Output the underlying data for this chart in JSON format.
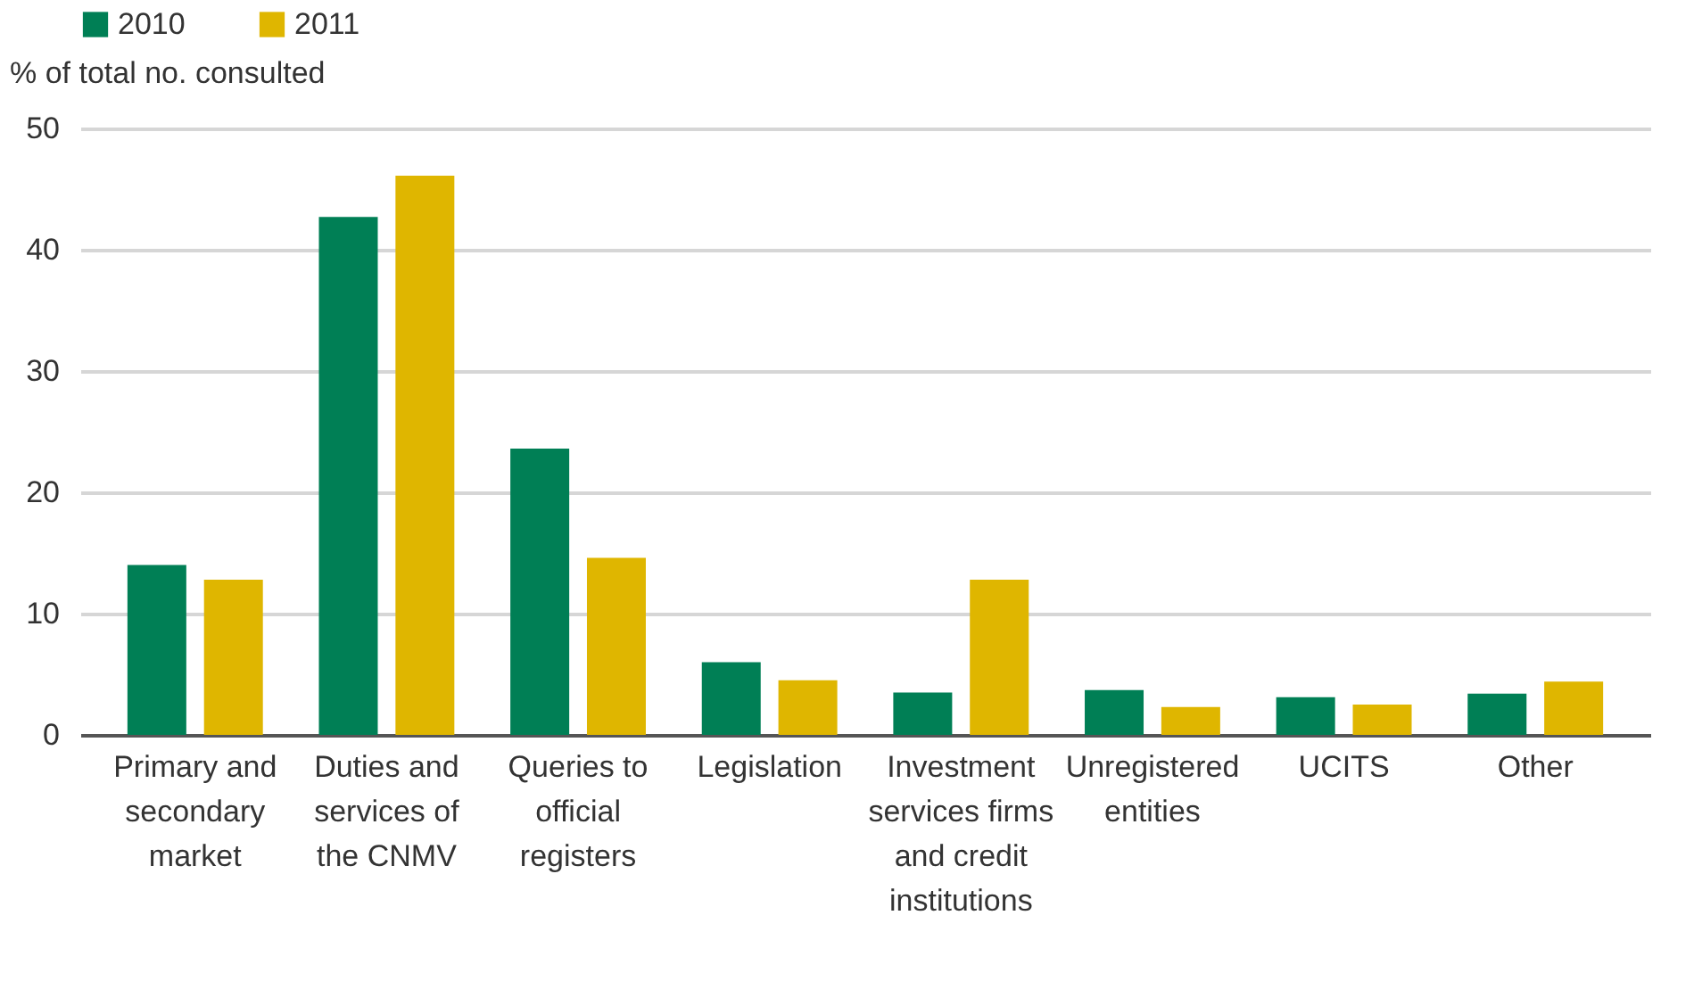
{
  "chart_data": {
    "type": "bar",
    "ylabel": "% of total no. consulted",
    "categories": [
      "Primary and\nsecondary\nmarket",
      "Duties and\nservices of\nthe CNMV",
      "Queries to\nofficial\nregisters",
      "Legislation",
      "Investment\nservices firms\nand credit\ninstitutions",
      "Unregistered\nentities",
      "UCITS",
      "Other"
    ],
    "series": [
      {
        "name": "2010",
        "color": "#007f55",
        "values": [
          14.0,
          42.7,
          23.6,
          6.0,
          3.5,
          3.7,
          3.1,
          3.4
        ]
      },
      {
        "name": "2011",
        "color": "#dfb600",
        "values": [
          12.8,
          46.1,
          14.6,
          4.5,
          12.8,
          2.3,
          2.5,
          4.4
        ]
      }
    ],
    "ylim": [
      0,
      50
    ],
    "yticks": [
      0,
      10,
      20,
      30,
      40,
      50
    ],
    "grid": "y",
    "legend": "top"
  }
}
